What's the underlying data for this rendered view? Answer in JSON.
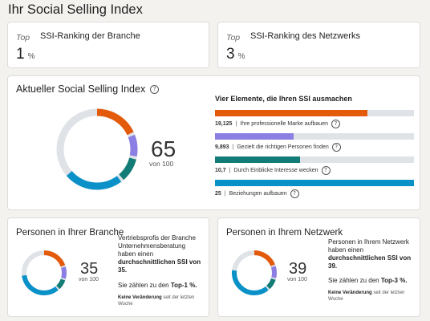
{
  "page_title": "Ihr Social Selling Index",
  "industry_rank": {
    "top_label": "Top",
    "label": "SSI-Ranking der Branche",
    "value": "1",
    "unit": "%"
  },
  "network_rank": {
    "top_label": "Top",
    "label": "SSI-Ranking des Netzwerks",
    "value": "3",
    "unit": "%"
  },
  "ssi": {
    "title": "Aktueller Social Selling Index",
    "score": "65",
    "out_of": "von 100",
    "elements_title": "Vier Elemente, die Ihren SSI ausmachen",
    "elements": [
      {
        "value": "19,125",
        "label": "Ihre professionelle Marke aufbauen",
        "fraction": 0.765,
        "color": "#e35a0b"
      },
      {
        "value": "9,893",
        "label": "Gezielt die richtigen Personen finden",
        "fraction": 0.396,
        "color": "#8b7fe3"
      },
      {
        "value": "10,7",
        "label": "Durch Einblicke Interesse wecken",
        "fraction": 0.428,
        "color": "#137c76"
      },
      {
        "value": "25",
        "label": "Beziehungen aufbauen",
        "fraction": 1.0,
        "color": "#0a91c8"
      }
    ]
  },
  "industry": {
    "title": "Personen in Ihrer Branche",
    "score": "35",
    "out_of": "von 100",
    "text_pre": "Vertriebsprofis der Branche Unternehmensberatung haben einen ",
    "text_bold": "durchschnittlichen SSI von 35.",
    "top_pre": "Sie zählen zu den ",
    "top_bold": "Top-1 %.",
    "change_bold": "Keine Veränderung",
    "change_rest": " seit der letzten Woche",
    "segments": [
      0.205,
      0.1,
      0.085,
      0.35
    ]
  },
  "network": {
    "title": "Personen in Ihrem Netzwerk",
    "score": "39",
    "out_of": "von 100",
    "text_pre": "Personen in Ihrem Netzwerk haben einen ",
    "text_bold": "durchschnittlichen SSI von 39.",
    "top_pre": "Sie zählen zu den ",
    "top_bold": "Top-3 %.",
    "change_bold": "Keine Veränderung",
    "change_rest": " seit der letzten Woche",
    "segments": [
      0.2,
      0.1,
      0.09,
      0.39
    ]
  },
  "colors": {
    "brand": "#e35a0b",
    "people": "#8b7fe3",
    "insights": "#137c76",
    "relationships": "#0a91c8",
    "track": "#dfe3e8"
  }
}
